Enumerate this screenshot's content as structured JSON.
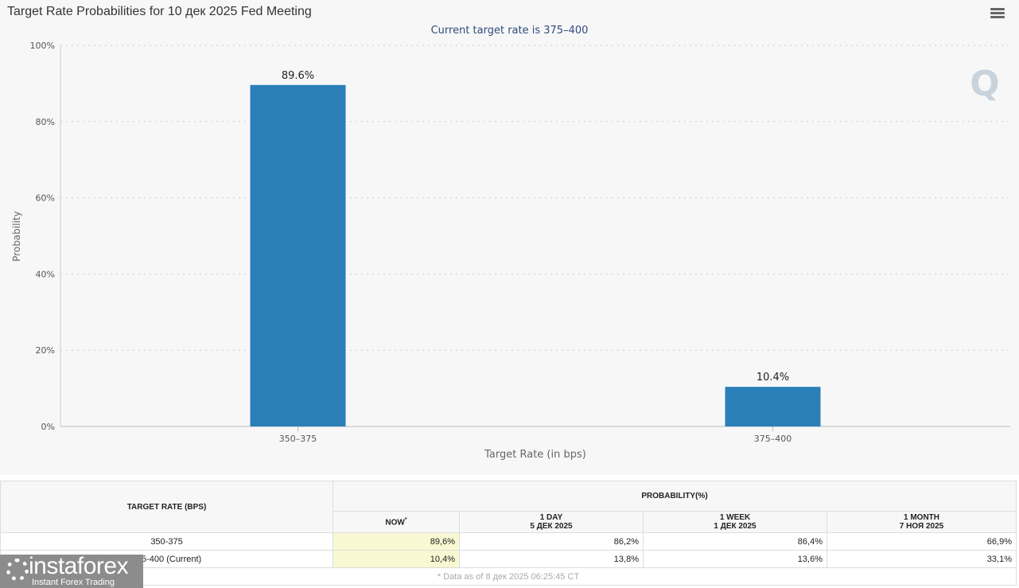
{
  "chart_data": {
    "type": "bar",
    "title": "Target Rate Probabilities for 10 дек 2025 Fed Meeting",
    "subtitle": "Current target rate is 375–400",
    "categories": [
      "350–375",
      "375–400"
    ],
    "values": [
      89.6,
      10.4
    ],
    "data_labels": [
      "89.6%",
      "10.4%"
    ],
    "xlabel": "Target Rate (in bps)",
    "ylabel": "Probability",
    "ylim": [
      0,
      100
    ],
    "yticks": [
      "0%",
      "20%",
      "40%",
      "60%",
      "80%",
      "100%"
    ],
    "grid": true,
    "bar_color": "#2b7fb8"
  },
  "table": {
    "head_rate": "TARGET RATE (BPS)",
    "head_prob": "PROBABILITY(%)",
    "cols": [
      {
        "l1": "NOW",
        "l2": ""
      },
      {
        "l1": "1 DAY",
        "l2": "5 ДЕК 2025"
      },
      {
        "l1": "1 WEEK",
        "l2": "1 ДЕК 2025"
      },
      {
        "l1": "1 MONTH",
        "l2": "7 НОЯ 2025"
      }
    ],
    "now_mark": "*",
    "rows": [
      {
        "rate": "350-375",
        "v": [
          "89,6%",
          "86,2%",
          "86,4%",
          "66,9%"
        ]
      },
      {
        "rate": "375-400 (Current)",
        "v": [
          "10,4%",
          "13,8%",
          "13,6%",
          "33,1%"
        ]
      }
    ],
    "footnote": "* Data as of 8 дек 2025 06:25:45 CT"
  },
  "watermark": {
    "name": "instaforex",
    "tagline": "Instant Forex Trading"
  },
  "menu_icon": "hamburger-icon"
}
